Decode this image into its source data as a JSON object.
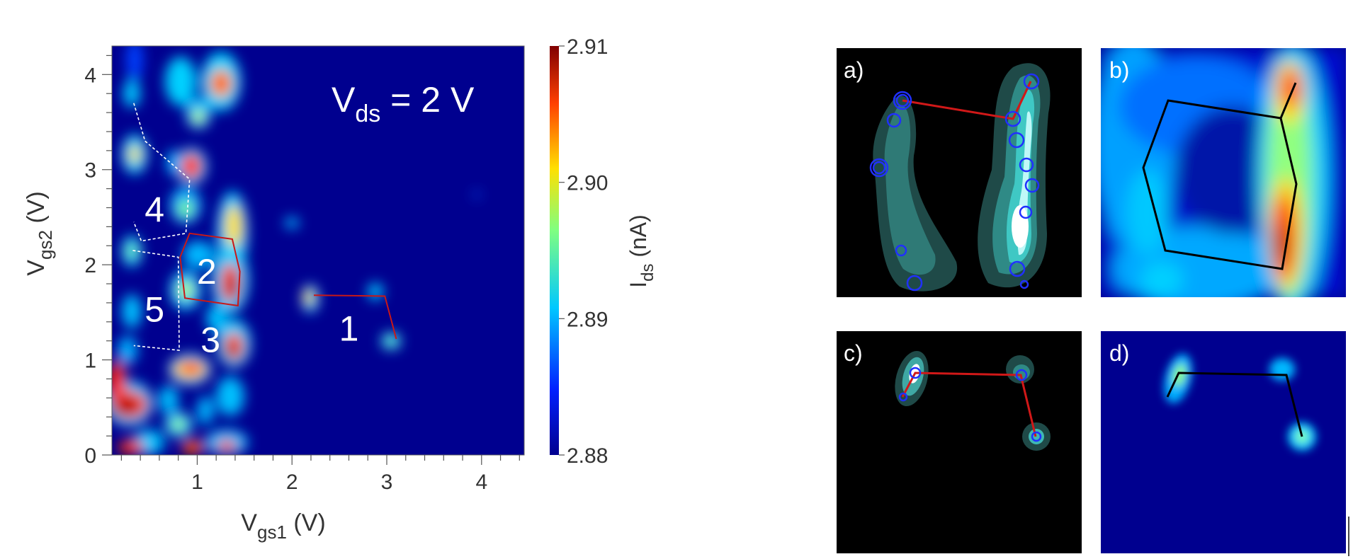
{
  "chart_data": [
    {
      "type": "heatmap",
      "title": "",
      "xlabel": "V",
      "xlabel_sub": "gs1",
      "xlabel_unit": " (V)",
      "ylabel": "V",
      "ylabel_sub": "gs2",
      "ylabel_unit": " (V)",
      "xlim": [
        0.1,
        4.45
      ],
      "ylim": [
        0,
        4.3
      ],
      "x_ticks": [
        1,
        2,
        3,
        4
      ],
      "y_ticks": [
        0,
        1,
        2,
        3,
        4
      ],
      "x_tick_labels": [
        "1",
        "2",
        "3",
        "4"
      ],
      "y_tick_labels": [
        "0",
        "1",
        "2",
        "3",
        "4"
      ],
      "annotation_parts": [
        "V",
        "ds",
        " = 2 V"
      ],
      "region_labels": [
        {
          "text": "1",
          "x": 2.6,
          "y": 1.3
        },
        {
          "text": "2",
          "x": 1.1,
          "y": 1.9
        },
        {
          "text": "3",
          "x": 1.14,
          "y": 1.18
        },
        {
          "text": "4",
          "x": 0.55,
          "y": 2.55
        },
        {
          "text": "5",
          "x": 0.55,
          "y": 1.5
        }
      ],
      "hexagon_red": [
        [
          0.82,
          2.08
        ],
        [
          0.92,
          2.33
        ],
        [
          1.37,
          2.27
        ],
        [
          1.45,
          1.93
        ],
        [
          1.43,
          1.57
        ],
        [
          0.87,
          1.65
        ]
      ],
      "cell_white_dashed": [
        [
          [
            0.33,
            3.7
          ],
          [
            0.45,
            3.3
          ],
          [
            0.92,
            2.9
          ],
          [
            0.88,
            2.33
          ],
          [
            0.41,
            2.25
          ],
          [
            0.33,
            2.45
          ]
        ],
        [
          [
            0.32,
            2.15
          ],
          [
            0.8,
            2.08
          ],
          [
            0.81,
            1.1
          ],
          [
            0.33,
            1.15
          ]
        ]
      ],
      "path_red_1": [
        [
          2.23,
          1.68
        ],
        [
          2.98,
          1.67
        ],
        [
          3.1,
          1.22
        ]
      ],
      "colorbar": {
        "min": 2.88,
        "max": 2.91,
        "ticks": [
          "2.88",
          "2.89",
          "2.90",
          "2.91"
        ],
        "label": "I",
        "label_sub": "ds",
        "label_unit": " (nA)",
        "colors": [
          "#00008f",
          "#0020ff",
          "#00c8ff",
          "#80ff80",
          "#ffe000",
          "#ff4000",
          "#800000"
        ]
      }
    },
    {
      "type": "heatmap",
      "panels": [
        {
          "label": "a)",
          "colormap": "dark-teal",
          "path_color": "#d01818",
          "markers": "blue-circles"
        },
        {
          "label": "b)",
          "colormap": "jet",
          "path_color": "#000000"
        },
        {
          "label": "c)",
          "colormap": "dark-teal",
          "path_color": "#d01818",
          "markers": "blue-circles"
        },
        {
          "label": "d)",
          "colormap": "jet",
          "path_color": "#000000"
        }
      ]
    }
  ]
}
